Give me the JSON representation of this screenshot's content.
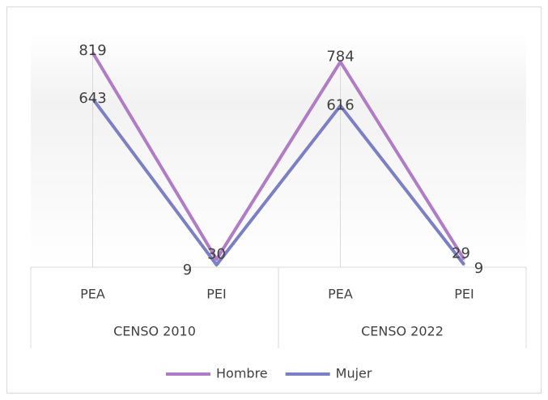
{
  "chart_data": {
    "type": "line",
    "groups": [
      "CENSO 2010",
      "CENSO 2022"
    ],
    "categories": [
      "PEA",
      "PEI",
      "PEA",
      "PEI"
    ],
    "series": [
      {
        "name": "Hombre",
        "color": "#b07cc6",
        "values": [
          819,
          30,
          784,
          29
        ]
      },
      {
        "name": "Mujer",
        "color": "#7b7fc4",
        "values": [
          643,
          9,
          616,
          9
        ]
      }
    ],
    "legend": "bottom"
  }
}
